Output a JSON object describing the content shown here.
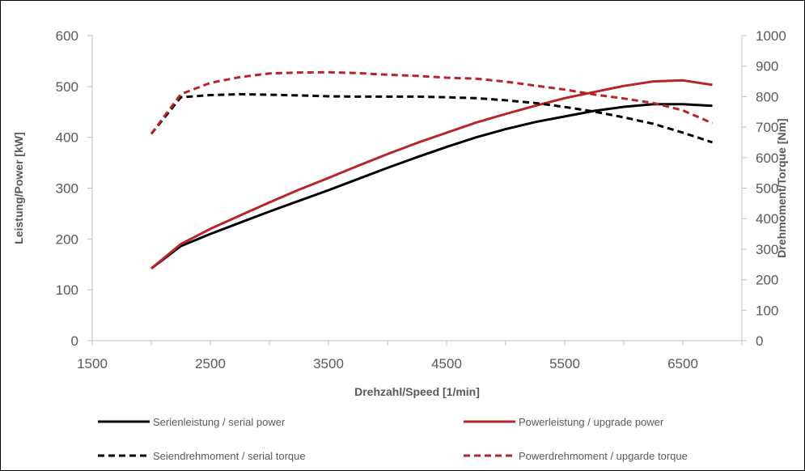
{
  "chart_data": {
    "type": "line",
    "xlabel": "Drehzahl/Speed [1/min]",
    "ylabel_left": "Leistung/Power [kW]",
    "ylabel_right": "Drehmoment/Torque [Nm]",
    "xlim": [
      1500,
      7000
    ],
    "x_ticks": [
      "1500",
      "2500",
      "3500",
      "4500",
      "5500",
      "6500"
    ],
    "y_left_lim": [
      0,
      600
    ],
    "y_left_ticks": [
      "0",
      "100",
      "200",
      "300",
      "400",
      "500",
      "600"
    ],
    "y_right_lim": [
      0,
      1000
    ],
    "y_right_ticks": [
      "0",
      "100",
      "200",
      "300",
      "400",
      "500",
      "600",
      "700",
      "800",
      "900",
      "1000"
    ],
    "grid": false,
    "legend_position": "bottom",
    "series": [
      {
        "name": "Serienleistung / serial power",
        "axis": "left",
        "color": "#000000",
        "dashed": false,
        "x": [
          2000,
          2250,
          2500,
          2750,
          3000,
          3250,
          3500,
          3750,
          4000,
          4250,
          4500,
          4750,
          5000,
          5250,
          5500,
          5750,
          6000,
          6250,
          6500,
          6750
        ],
        "values": [
          142,
          186,
          210,
          232,
          254,
          275,
          296,
          318,
          340,
          361,
          381,
          400,
          416,
          430,
          441,
          452,
          460,
          465,
          465,
          462
        ]
      },
      {
        "name": "Powerleistung / upgrade power",
        "axis": "left",
        "color": "#b8242b",
        "dashed": false,
        "x": [
          2000,
          2250,
          2500,
          2750,
          3000,
          3250,
          3500,
          3750,
          4000,
          4250,
          4500,
          4750,
          5000,
          5250,
          5500,
          5750,
          6000,
          6250,
          6500,
          6750
        ],
        "values": [
          142,
          190,
          220,
          246,
          272,
          297,
          320,
          344,
          367,
          389,
          409,
          429,
          446,
          462,
          477,
          489,
          501,
          510,
          512,
          503
        ]
      },
      {
        "name": "Seiendrehmoment / serial torque",
        "axis": "right",
        "color": "#000000",
        "dashed": true,
        "x": [
          2000,
          2250,
          2500,
          2750,
          3000,
          3250,
          3500,
          3750,
          4000,
          4250,
          4500,
          4750,
          5000,
          5250,
          5500,
          5750,
          6000,
          6250,
          6500,
          6750
        ],
        "values": [
          678,
          798,
          805,
          808,
          806,
          804,
          801,
          800,
          800,
          800,
          798,
          795,
          788,
          779,
          766,
          751,
          732,
          711,
          682,
          650
        ]
      },
      {
        "name": "Powerdrehmoment / upgarde torque",
        "axis": "right",
        "color": "#b8242b",
        "dashed": true,
        "x": [
          2000,
          2250,
          2500,
          2750,
          3000,
          3250,
          3500,
          3750,
          4000,
          4250,
          4500,
          4750,
          5000,
          5250,
          5500,
          5750,
          6000,
          6250,
          6500,
          6750
        ],
        "values": [
          678,
          808,
          845,
          864,
          876,
          879,
          880,
          877,
          872,
          868,
          862,
          859,
          849,
          836,
          823,
          807,
          794,
          779,
          755,
          713
        ]
      }
    ]
  }
}
